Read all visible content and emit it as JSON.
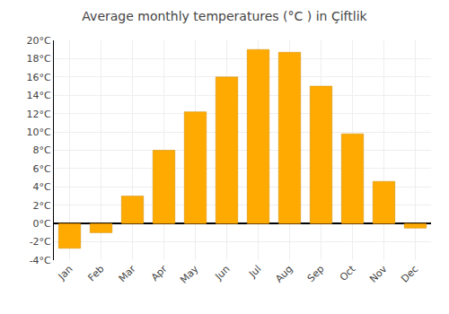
{
  "chart_data": {
    "type": "bar",
    "title": "Average monthly temperatures (°C ) in Çiftlik",
    "categories": [
      "Jan",
      "Feb",
      "Mar",
      "Apr",
      "May",
      "Jun",
      "Jul",
      "Aug",
      "Sep",
      "Oct",
      "Nov",
      "Dec"
    ],
    "values": [
      -2.7,
      -1.0,
      3.0,
      8.0,
      12.2,
      16.0,
      19.0,
      18.7,
      15.0,
      9.8,
      4.6,
      -0.5
    ],
    "color": "#FFAA00",
    "ylim": [
      -4,
      20
    ],
    "yticks": [
      {
        "value": -4,
        "label": "-4°C"
      },
      {
        "value": -2,
        "label": "-2°C"
      },
      {
        "value": 0,
        "label": "0°C"
      },
      {
        "value": 2,
        "label": "2°C"
      },
      {
        "value": 4,
        "label": "4°C"
      },
      {
        "value": 6,
        "label": "6°C"
      },
      {
        "value": 8,
        "label": "8°C"
      },
      {
        "value": 10,
        "label": "10°C"
      },
      {
        "value": 12,
        "label": "12°C"
      },
      {
        "value": 14,
        "label": "14°C"
      },
      {
        "value": 16,
        "label": "16°C"
      },
      {
        "value": 18,
        "label": "18°C"
      },
      {
        "value": 20,
        "label": "20°C"
      }
    ],
    "grid": true
  }
}
